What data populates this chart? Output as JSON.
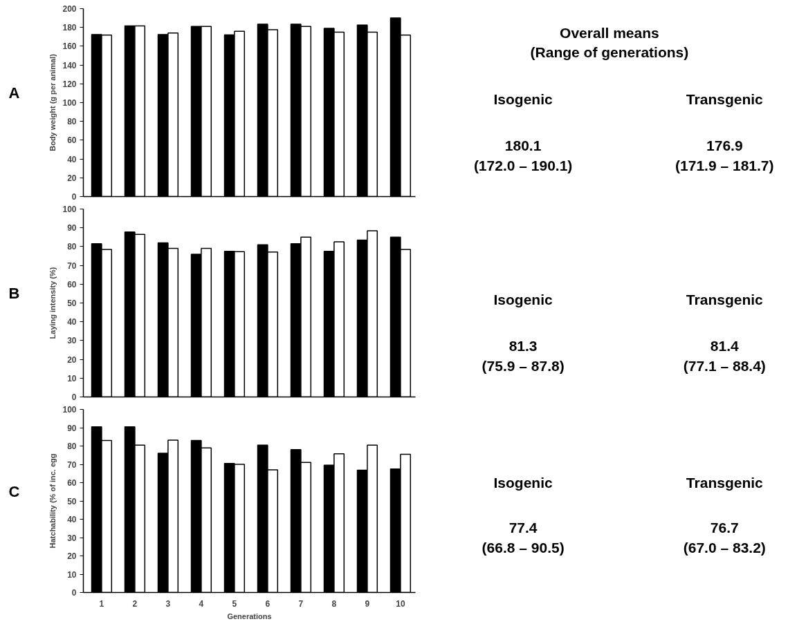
{
  "chart_data": [
    {
      "type": "bar",
      "ylabel": "Body weight (g per animal)",
      "categories": [
        "1",
        "2",
        "3",
        "4",
        "5",
        "6",
        "7",
        "8",
        "9",
        "10"
      ],
      "ylim": [
        0,
        200
      ],
      "yticks": [
        0,
        20,
        40,
        60,
        80,
        100,
        120,
        140,
        160,
        180,
        200
      ],
      "tick_labels": "y",
      "grid": false,
      "series": [
        {
          "color": "#000000",
          "values": [
            172.5,
            181.7,
            172.5,
            181,
            172.0,
            183.5,
            183.5,
            179,
            182.5,
            190.1
          ]
        },
        {
          "color": "#ffffff",
          "values": [
            171.9,
            181.7,
            174,
            181,
            176,
            177.5,
            181,
            175,
            175,
            171.9
          ]
        }
      ],
      "annotations": [
        "A",
        "Overall means\n(Range of generations)",
        "Isogenic",
        "Transgenic",
        "180.1\n(172.0 – 190.1)",
        "176.9\n(171.9 – 181.7)"
      ]
    },
    {
      "type": "bar",
      "ylabel": "Laying intensity (%)",
      "categories": [
        "1",
        "2",
        "3",
        "4",
        "5",
        "6",
        "7",
        "8",
        "9",
        "10"
      ],
      "ylim": [
        0,
        100
      ],
      "yticks": [
        0,
        10,
        20,
        30,
        40,
        50,
        60,
        70,
        80,
        90,
        100
      ],
      "tick_labels": "y",
      "grid": false,
      "series": [
        {
          "color": "#000000",
          "values": [
            81.5,
            87.8,
            82,
            75.9,
            77.5,
            81,
            81.5,
            77.5,
            83.5,
            85
          ]
        },
        {
          "color": "#ffffff",
          "values": [
            78.5,
            86.5,
            79,
            79,
            77.3,
            77.1,
            85,
            82.5,
            88.4,
            78.5
          ]
        }
      ],
      "annotations": [
        "B",
        "Isogenic",
        "Transgenic",
        "81.3\n(75.9 – 87.8)",
        "81.4\n(77.1 – 88.4)"
      ]
    },
    {
      "type": "bar",
      "xlabel": "Generations",
      "ylabel": "Hatchability (% of inc. egg",
      "categories": [
        "1",
        "2",
        "3",
        "4",
        "5",
        "6",
        "7",
        "8",
        "9",
        "10"
      ],
      "ylim": [
        0,
        100
      ],
      "yticks": [
        0,
        10,
        20,
        30,
        40,
        50,
        60,
        70,
        80,
        90,
        100
      ],
      "grid": false,
      "series": [
        {
          "color": "#000000",
          "values": [
            90.5,
            90.5,
            76,
            83,
            70.5,
            80.5,
            78,
            69.5,
            66.8,
            67.5
          ]
        },
        {
          "color": "#ffffff",
          "values": [
            83,
            80.5,
            83.2,
            79,
            70,
            67.0,
            71,
            75.8,
            80.5,
            75.5
          ]
        }
      ],
      "annotations": [
        "C",
        "Isogenic",
        "Transgenic",
        "77.4\n(66.8 – 90.5)",
        "76.7\n(67.0 – 83.2)"
      ]
    }
  ]
}
